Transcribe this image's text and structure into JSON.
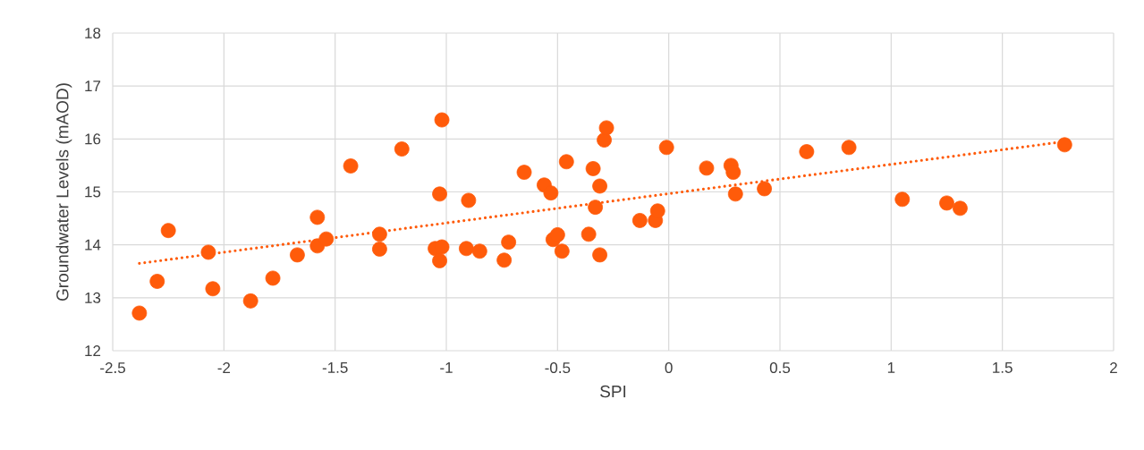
{
  "chart_data": {
    "type": "scatter",
    "xlabel": "SPI",
    "ylabel": "Groundwater Levels (mAOD)",
    "xlim": [
      -2.5,
      2
    ],
    "ylim": [
      12,
      18
    ],
    "xticks": [
      -2.5,
      -2,
      -1.5,
      -1,
      -0.5,
      0,
      0.5,
      1,
      1.5,
      2
    ],
    "yticks": [
      12,
      13,
      14,
      15,
      16,
      17,
      18
    ],
    "grid": true,
    "series": [
      {
        "color": "#ff5b0a",
        "marker": "circle",
        "x": [
          -2.38,
          -2.3,
          -2.25,
          -2.07,
          -2.05,
          -1.88,
          -1.78,
          -1.67,
          -1.58,
          -1.58,
          -1.54,
          -1.43,
          -1.3,
          -1.3,
          -1.2,
          -1.05,
          -1.03,
          -1.03,
          -1.02,
          -1.02,
          -0.91,
          -0.9,
          -0.85,
          -0.74,
          -0.72,
          -0.65,
          -0.56,
          -0.53,
          -0.52,
          -0.5,
          -0.48,
          -0.46,
          -0.36,
          -0.34,
          -0.33,
          -0.31,
          -0.31,
          -0.29,
          -0.28,
          -0.13,
          -0.06,
          -0.05,
          -0.01,
          0.17,
          0.28,
          0.29,
          0.3,
          0.43,
          0.62,
          0.81,
          1.05,
          1.25,
          1.31,
          1.78
        ],
        "values": [
          12.71,
          13.31,
          14.27,
          13.86,
          13.17,
          12.94,
          13.37,
          13.81,
          14.52,
          13.98,
          14.11,
          15.49,
          14.2,
          13.92,
          15.81,
          13.93,
          14.96,
          13.7,
          16.36,
          13.96,
          13.93,
          14.84,
          13.88,
          13.71,
          14.05,
          15.37,
          15.13,
          14.98,
          14.1,
          14.19,
          13.88,
          15.57,
          14.2,
          15.44,
          14.71,
          15.11,
          13.81,
          15.98,
          16.21,
          14.46,
          14.46,
          14.64,
          15.84,
          15.45,
          15.5,
          15.37,
          14.96,
          15.06,
          15.76,
          15.84,
          14.86,
          14.79,
          14.69,
          15.89
        ]
      },
      {
        "type": "line",
        "color": "#ff5b0a",
        "marker": "none",
        "line_style": "dotted",
        "x": [
          -2.38,
          1.74
        ],
        "values": [
          13.65,
          15.93
        ]
      }
    ]
  }
}
